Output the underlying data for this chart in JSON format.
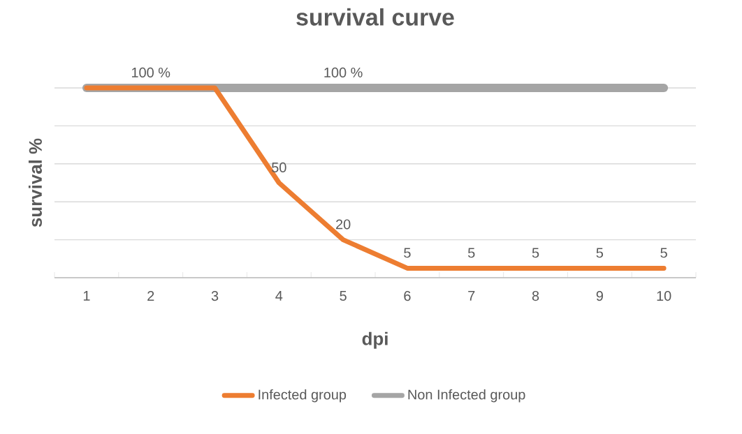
{
  "chart_data": {
    "type": "line",
    "title": "survival curve",
    "xlabel": "dpi",
    "ylabel": "survival %",
    "categories": [
      "1",
      "2",
      "3",
      "4",
      "5",
      "6",
      "7",
      "8",
      "9",
      "10"
    ],
    "ylim": [
      0,
      100
    ],
    "yticks": [
      {
        "value": 0,
        "label": null
      },
      {
        "value": 20,
        "label": null
      },
      {
        "value": 40,
        "label": null
      },
      {
        "value": 60,
        "label": null
      },
      {
        "value": 80,
        "label": null
      },
      {
        "value": 100,
        "label": null
      }
    ],
    "tick_labels": "x",
    "grid": "y",
    "legend": "bottom",
    "marker": "none",
    "line_style": "solid",
    "series": [
      {
        "name": "Non Infected group",
        "color": "#a5a5a5",
        "values": [
          100,
          100,
          100,
          100,
          100,
          100,
          100,
          100,
          100,
          100
        ],
        "value_labels": [
          null,
          null,
          null,
          null,
          "100 %",
          null,
          null,
          null,
          null,
          null
        ]
      },
      {
        "name": "Infected group",
        "color": "#ed7d31",
        "values": [
          100,
          100,
          100,
          50,
          20,
          5,
          5,
          5,
          5,
          5
        ],
        "value_labels": [
          null,
          "100 %",
          null,
          "50",
          "20",
          "5",
          "5",
          "5",
          "5",
          "5"
        ]
      }
    ]
  }
}
